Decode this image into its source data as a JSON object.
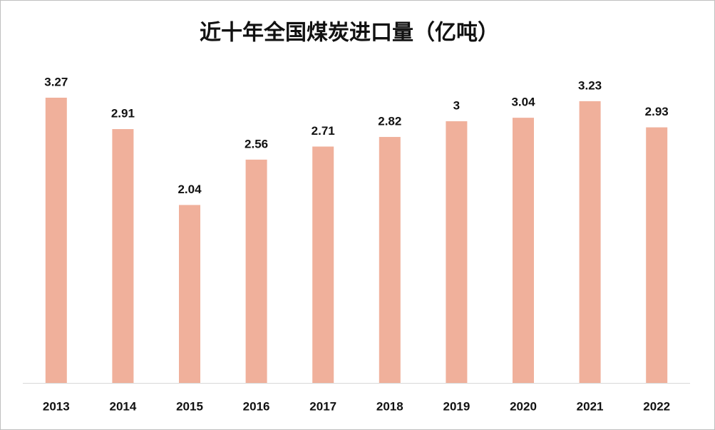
{
  "chart_data": {
    "type": "bar",
    "title": "近十年全国煤炭进口量（亿吨）",
    "categories": [
      "2013",
      "2014",
      "2015",
      "2016",
      "2017",
      "2018",
      "2019",
      "2020",
      "2021",
      "2022"
    ],
    "values": [
      3.27,
      2.91,
      2.04,
      2.56,
      2.71,
      2.82,
      3,
      3.04,
      3.23,
      2.93
    ],
    "color": "#f0b09b"
  }
}
